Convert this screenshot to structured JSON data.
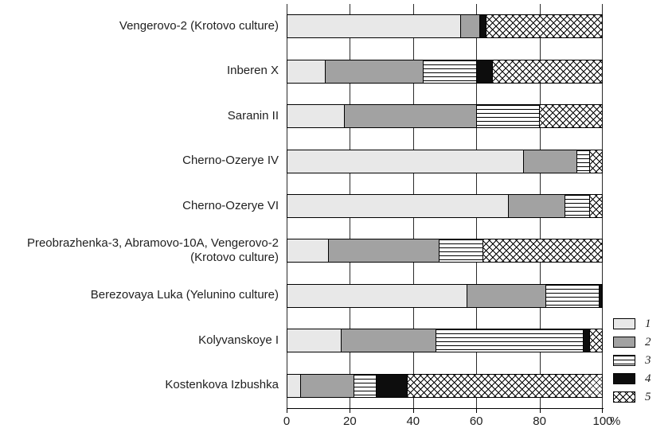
{
  "chart_data": {
    "type": "bar",
    "orientation": "horizontal",
    "stacked": true,
    "title": "",
    "xlabel": "",
    "ylabel": "",
    "xlim": [
      0,
      100
    ],
    "x_ticks": [
      0,
      20,
      40,
      60,
      80,
      100
    ],
    "unit": "%",
    "grid": true,
    "legend_position": "right-bottom",
    "categories": [
      "Vengerovo-2 (Krotovo culture)",
      "Inberen X",
      "Saranin II",
      "Cherno-Ozerye IV",
      "Cherno-Ozerye VI",
      "Preobrazhenka-3, Abramovo-10A, Vengerovo-2 (Krotovo culture)",
      "Berezovaya Luka (Yelunino culture)",
      "Kolyvanskoye I",
      "Kostenkova Izbushka"
    ],
    "series": [
      {
        "name": "1",
        "pattern": "light",
        "values": [
          55,
          12,
          18,
          75,
          70,
          13,
          57,
          17,
          4
        ]
      },
      {
        "name": "2",
        "pattern": "mid",
        "values": [
          6,
          31,
          42,
          17,
          18,
          35,
          25,
          30,
          17
        ]
      },
      {
        "name": "3",
        "pattern": "hlines",
        "values": [
          0,
          17,
          20,
          4,
          8,
          14,
          17,
          47,
          7
        ]
      },
      {
        "name": "4",
        "pattern": "black",
        "values": [
          2,
          5,
          0,
          0,
          0,
          0,
          1,
          2,
          10
        ]
      },
      {
        "name": "5",
        "pattern": "cross",
        "values": [
          37,
          35,
          20,
          4,
          4,
          38,
          0,
          4,
          62
        ]
      }
    ],
    "legend": [
      {
        "label": "1",
        "pattern": "light"
      },
      {
        "label": "2",
        "pattern": "mid"
      },
      {
        "label": "3",
        "pattern": "hlines"
      },
      {
        "label": "4",
        "pattern": "black"
      },
      {
        "label": "5",
        "pattern": "cross"
      }
    ]
  },
  "colors": {
    "series_1_light_gray": "#e8e8e8",
    "series_2_gray": "#a2a2a2",
    "series_4_black": "#0d0d0d",
    "line_black": "#000000",
    "background": "#ffffff"
  }
}
